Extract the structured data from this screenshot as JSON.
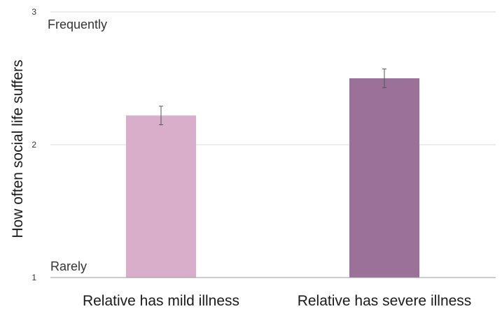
{
  "chart_data": {
    "type": "bar",
    "categories": [
      "Relative has mild illness",
      "Relative has severe illness"
    ],
    "values": [
      2.22,
      2.5
    ],
    "error": [
      0.07,
      0.07
    ],
    "colors": [
      "#d8aecb",
      "#9b7099"
    ],
    "ylabel": "How often social life suffers",
    "ylim": [
      1,
      3
    ],
    "yticks": [
      "1",
      "2",
      "3"
    ],
    "annotations": {
      "top": "Frequently",
      "bottom": "Rarely"
    },
    "grid": true
  }
}
